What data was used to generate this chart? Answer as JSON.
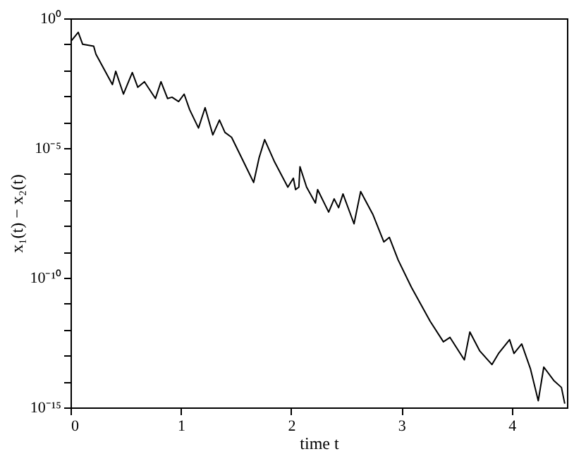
{
  "chart_data": {
    "type": "line",
    "xlabel": "time t",
    "ylabel": "x₁(t) − x₂(t)",
    "log": "y",
    "grid": false,
    "marker": "none",
    "line_style": "solid",
    "xlim": [
      0,
      4.5
    ],
    "xticks": [
      0,
      1,
      2,
      3,
      4
    ],
    "ylim": [
      1e-15,
      1
    ],
    "yticks": [
      {
        "value": 1,
        "label": "10⁰"
      },
      {
        "value": 0.1,
        "label": null
      },
      {
        "value": 0.01,
        "label": null
      },
      {
        "value": 0.001,
        "label": null
      },
      {
        "value": 0.0001,
        "label": null
      },
      {
        "value": 1e-05,
        "label": "10⁻⁵"
      },
      {
        "value": 1e-06,
        "label": null
      },
      {
        "value": 1e-07,
        "label": null
      },
      {
        "value": 1e-08,
        "label": null
      },
      {
        "value": 1e-09,
        "label": null
      },
      {
        "value": 1e-10,
        "label": "10⁻¹⁰"
      },
      {
        "value": 1e-11,
        "label": null
      },
      {
        "value": 1e-12,
        "label": null
      },
      {
        "value": 1e-13,
        "label": null
      },
      {
        "value": 1e-14,
        "label": null
      },
      {
        "value": 1e-15,
        "label": "10⁻¹⁵"
      }
    ],
    "x": [
      0.01,
      0.07,
      0.11,
      0.21,
      0.23,
      0.38,
      0.41,
      0.48,
      0.56,
      0.61,
      0.67,
      0.77,
      0.82,
      0.88,
      0.92,
      0.98,
      1.03,
      1.08,
      1.16,
      1.22,
      1.29,
      1.35,
      1.4,
      1.46,
      1.56,
      1.66,
      1.71,
      1.76,
      1.85,
      1.97,
      2.02,
      2.04,
      2.07,
      2.08,
      2.14,
      2.22,
      2.24,
      2.34,
      2.39,
      2.43,
      2.47,
      2.57,
      2.63,
      2.74,
      2.84,
      2.89,
      2.97,
      3.09,
      3.26,
      3.38,
      3.44,
      3.57,
      3.62,
      3.71,
      3.82,
      3.88,
      3.98,
      4.02,
      4.09,
      4.17,
      4.24,
      4.29,
      4.38,
      4.45,
      4.48
    ],
    "series": [
      {
        "color": "#000000",
        "values": [
          0.14,
          0.29,
          0.1,
          0.085,
          0.042,
          0.0028,
          0.0091,
          0.0012,
          0.0081,
          0.0022,
          0.0036,
          0.00081,
          0.0036,
          0.00081,
          0.00091,
          0.00062,
          0.0012,
          0.0003,
          5.9e-05,
          0.00036,
          3.2e-05,
          0.00012,
          4e-05,
          2.6e-05,
          3.5e-06,
          4.7e-07,
          4.3e-06,
          2.1e-05,
          2.9e-06,
          3.1e-07,
          6.9e-07,
          2.5e-07,
          3.1e-07,
          1.9e-06,
          3.1e-07,
          7.6e-08,
          2.5e-07,
          3.4e-08,
          1.1e-07,
          5e-08,
          1.7e-07,
          1.2e-08,
          2.1e-07,
          2.8e-08,
          2.4e-09,
          3.6e-09,
          4.8e-10,
          4.3e-11,
          2.1e-12,
          3.4e-13,
          5e-13,
          6.8e-14,
          8.1e-13,
          1.5e-13,
          4.5e-14,
          1.2e-13,
          4.1e-13,
          1.2e-13,
          2.8e-13,
          3e-14,
          1.8e-15,
          3.6e-14,
          1.1e-14,
          5.9e-15,
          1.4e-15
        ]
      }
    ]
  }
}
